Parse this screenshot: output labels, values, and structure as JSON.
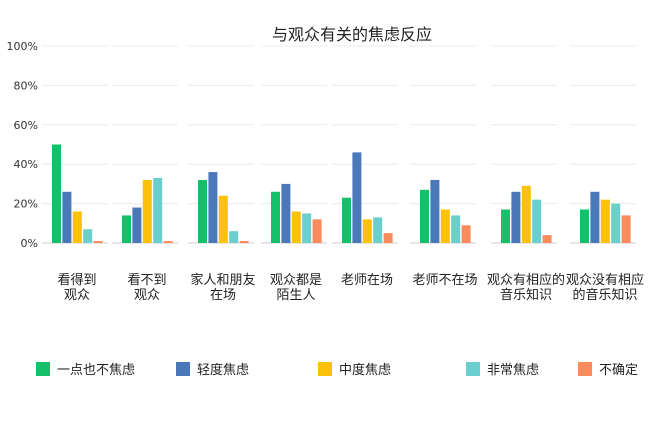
{
  "chart_data": {
    "type": "bar",
    "title": "与观众有关的焦虑反应",
    "ylim": [
      0,
      100
    ],
    "yticks": [
      "0%",
      "20%",
      "40%",
      "60%",
      "80%",
      "100%"
    ],
    "categories": [
      [
        "看得到",
        "观众"
      ],
      [
        "看不到",
        "观众"
      ],
      [
        "家人和朋友",
        "在场"
      ],
      [
        "观众都是",
        "陌生人"
      ],
      [
        "老师在场"
      ],
      [
        "老师不在场"
      ],
      [
        "观众有相应的",
        "音乐知识"
      ],
      [
        "观众没有相应",
        "的音乐知识"
      ]
    ],
    "series": [
      {
        "name": "一点也不焦虑",
        "color": "#16c06a",
        "values": [
          50,
          14,
          32,
          26,
          23,
          27,
          17,
          17
        ]
      },
      {
        "name": "轻度焦虑",
        "color": "#4a78b8",
        "values": [
          26,
          18,
          36,
          30,
          46,
          32,
          26,
          26
        ]
      },
      {
        "name": "中度焦虑",
        "color": "#fcc10b",
        "values": [
          16,
          32,
          24,
          16,
          12,
          17,
          29,
          22
        ]
      },
      {
        "name": "非常焦虑",
        "color": "#6bcfcf",
        "values": [
          7,
          33,
          6,
          15,
          13,
          14,
          22,
          20
        ]
      },
      {
        "name": "不确定",
        "color": "#fb8a5c",
        "values": [
          1,
          1,
          1,
          12,
          5,
          9,
          4,
          14
        ]
      }
    ],
    "grid": true,
    "legend_position": "bottom"
  }
}
